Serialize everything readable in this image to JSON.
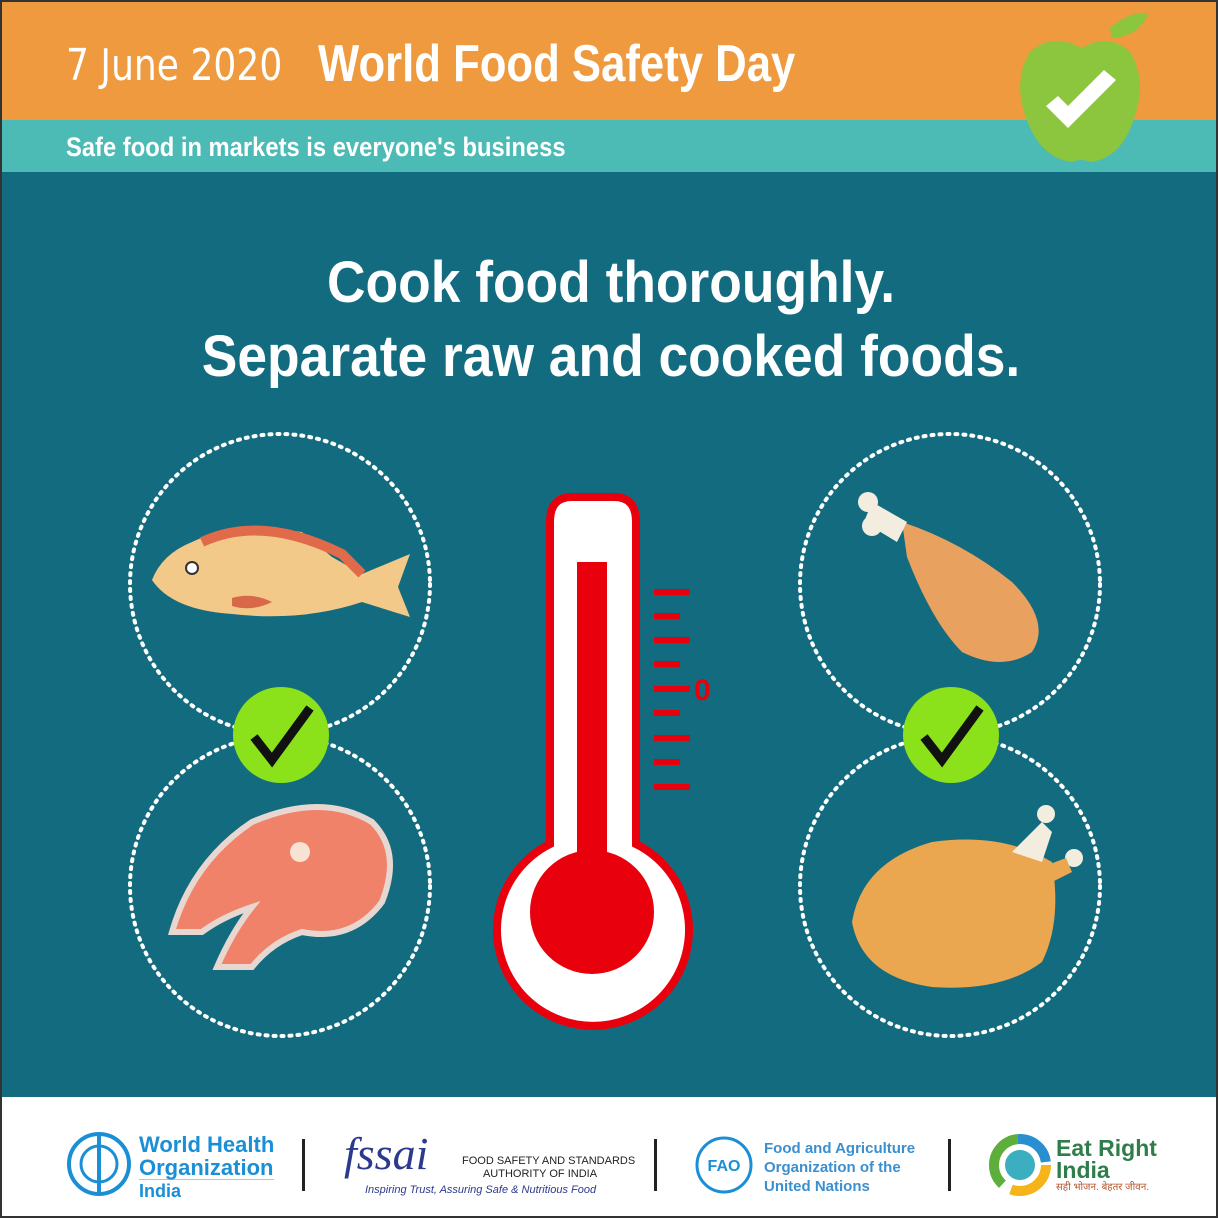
{
  "header": {
    "date": "7 June 2020",
    "title": "World Food Safety Day",
    "tagline": "Safe food in markets is everyone's business",
    "logo_icon": "apple-check-icon"
  },
  "main": {
    "headline_1": "Cook food thoroughly.",
    "headline_2": "Separate raw and cooked foods.",
    "thermometer_label": "0",
    "left_items": [
      "fish-icon",
      "salmon-steak-icon"
    ],
    "right_items": [
      "chicken-leg-icon",
      "roast-chicken-icon"
    ]
  },
  "footer": {
    "who": {
      "line1": "World Health",
      "line2": "Organization",
      "line3": "India"
    },
    "fssai": {
      "logo": "fssai",
      "name_1": "FOOD SAFETY AND STANDARDS",
      "name_2": "AUTHORITY OF INDIA",
      "slogan": "Inspiring Trust, Assuring Safe & Nutritious Food"
    },
    "fao": {
      "line1": "Food and Agriculture",
      "line2": "Organization of the",
      "line3": "United Nations"
    },
    "eri": {
      "line1": "Eat Right",
      "line2": "India",
      "slogan": "सही भोजन. बेहतर जीवन."
    }
  },
  "colors": {
    "orange": "#EF9A3E",
    "teal": "#4CBAB5",
    "background": "#136B7F",
    "red": "#E8000C",
    "check_green": "#8BE21A"
  }
}
